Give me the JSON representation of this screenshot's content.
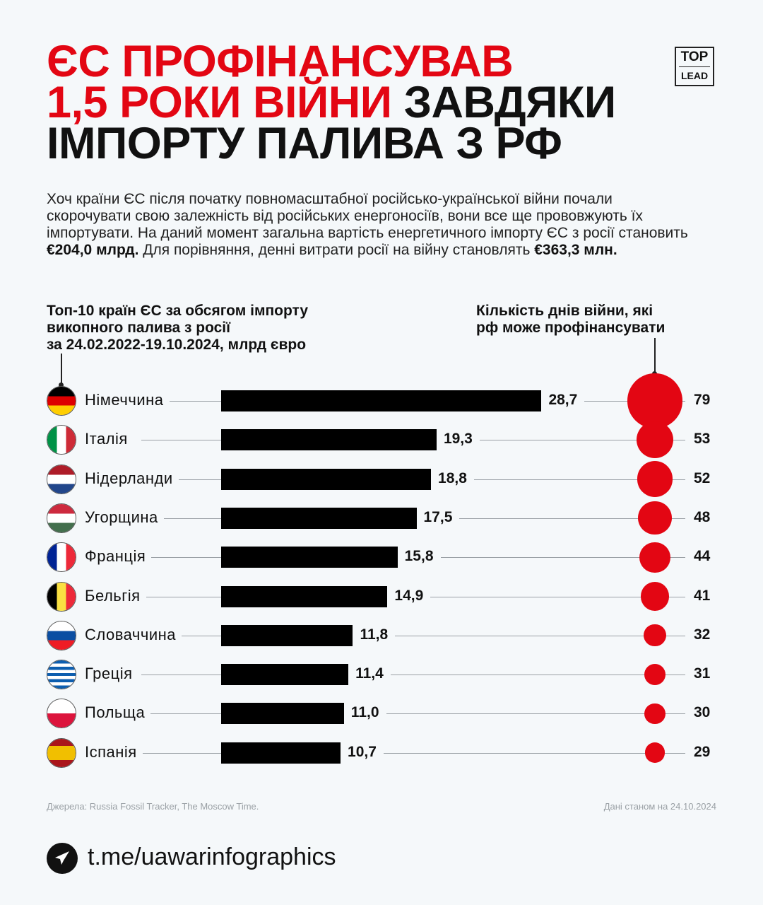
{
  "logo": {
    "top": "TOP",
    "bottom": "LEAD"
  },
  "title": {
    "red_1": "ЄС ПРОФІНАНСУВАВ",
    "red_2": "1,5 РОКИ ВІЙНИ",
    "black_2": "ЗАВДЯКИ",
    "black_3": "ІМПОРТУ ПАЛИВА З РФ"
  },
  "intro": {
    "text_1": "Хоч країни ЄС після початку повномасштабної російсько-української війни почали скорочувати свою залежність від російських енергоносіїв, вони все ще прововжують їх імпортувати. На даний момент загальна вартість енергетичного імпорту ЄС з росії становить ",
    "bold_1": "€204,0 млрд.",
    "text_2": " Для порівняння, денні витрати росії на війну становлять ",
    "bold_2": "€363,3 млн."
  },
  "chart_data": {
    "type": "bar",
    "title_left": "Топ-10 країн ЄС за обсягом імпорту викопного палива з росії за 24.02.2022-19.10.2024, млрд євро",
    "title_right": "Кількість днів війни, які рф може профінансувати",
    "categories": [
      "Німеччина",
      "Італія",
      "Нідерланди",
      "Угорщина",
      "Франція",
      "Бельгія",
      "Словаччина",
      "Греція",
      "Польща",
      "Іспанія"
    ],
    "flags": [
      "de",
      "it",
      "nl",
      "hu",
      "fr",
      "be",
      "sk",
      "gr",
      "pl",
      "es"
    ],
    "series": [
      {
        "name": "Імпорт, млрд євро",
        "values": [
          28.7,
          19.3,
          18.8,
          17.5,
          15.8,
          14.9,
          11.8,
          11.4,
          11.0,
          10.7
        ],
        "labels": [
          "28,7",
          "19,3",
          "18,8",
          "17,5",
          "15,8",
          "14,9",
          "11,8",
          "11,4",
          "11,0",
          "10,7"
        ],
        "color": "#000000"
      },
      {
        "name": "Днів війни",
        "values": [
          79,
          53,
          52,
          48,
          44,
          41,
          32,
          31,
          30,
          29
        ],
        "color": "#e30613"
      }
    ]
  },
  "header_left": {
    "l1": "Топ-10 країн ЄС за обсягом імпорту",
    "l2": "викопного палива з росії",
    "l3": "за 24.02.2022-19.10.2024, млрд євро"
  },
  "header_right": {
    "l1": "Кількість днів війни, які",
    "l2": "рф може профінансувати"
  },
  "footer": {
    "sources": "Джерела: Russia Fossil Tracker, The Moscow Time.",
    "date": "Дані станом на  24.10.2024",
    "url": "t.me/uawarinfographics"
  },
  "colors": {
    "accent": "#e30613",
    "background": "#f5f8fa"
  }
}
